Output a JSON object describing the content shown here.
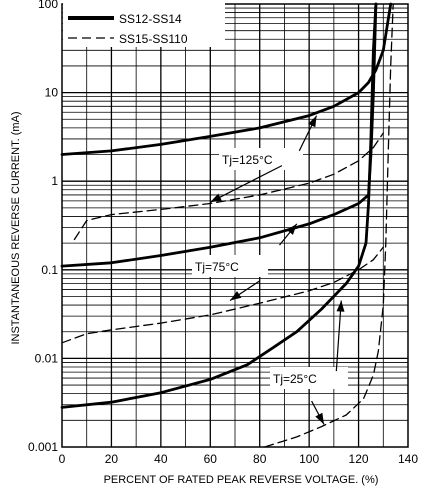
{
  "chart_data": {
    "type": "line",
    "title": "",
    "xlabel": "PERCENT OF RATED PEAK REVERSE VOLTAGE. (%)",
    "ylabel": "INSTANTANEOUS REVERSE CURRENT. (mA)",
    "xlim": [
      0,
      140
    ],
    "ylim": [
      0.001,
      100
    ],
    "yscale": "log",
    "grid": true,
    "xticks": [
      "0",
      "20",
      "40",
      "60",
      "80",
      "100",
      "120",
      "140"
    ],
    "yticks": [
      "0.001",
      "0.01",
      "0.1",
      "1",
      "10",
      "100"
    ],
    "legend": {
      "placement": "top-left",
      "entries": [
        {
          "label": "SS12-SS14",
          "style": "solid"
        },
        {
          "label": "SS15-SS110",
          "style": "dashed"
        }
      ]
    },
    "series": [
      {
        "legend": "SS12-SS14",
        "style": "solid",
        "condition": "Tj=125°C",
        "points": [
          [
            0,
            2.0
          ],
          [
            20,
            2.2
          ],
          [
            40,
            2.6
          ],
          [
            60,
            3.2
          ],
          [
            80,
            4.0
          ],
          [
            100,
            5.5
          ],
          [
            110,
            7.0
          ],
          [
            120,
            10.0
          ],
          [
            124,
            13.0
          ],
          [
            127,
            18.0
          ],
          [
            130,
            30.0
          ],
          [
            133,
            100.0
          ]
        ]
      },
      {
        "legend": "SS12-SS14",
        "style": "solid",
        "condition": "Tj=75°C",
        "points": [
          [
            0,
            0.11
          ],
          [
            20,
            0.12
          ],
          [
            40,
            0.145
          ],
          [
            60,
            0.18
          ],
          [
            80,
            0.23
          ],
          [
            100,
            0.33
          ],
          [
            110,
            0.42
          ],
          [
            120,
            0.56
          ],
          [
            124,
            0.7
          ],
          [
            125,
            2.0
          ],
          [
            126,
            10.0
          ],
          [
            127,
            100.0
          ]
        ]
      },
      {
        "legend": "SS12-SS14",
        "style": "solid",
        "condition": "Tj=25°C",
        "points": [
          [
            0,
            0.0028
          ],
          [
            20,
            0.0032
          ],
          [
            40,
            0.0041
          ],
          [
            60,
            0.0058
          ],
          [
            75,
            0.0085
          ],
          [
            85,
            0.013
          ],
          [
            95,
            0.02
          ],
          [
            105,
            0.036
          ],
          [
            115,
            0.07
          ],
          [
            120,
            0.11
          ],
          [
            123,
            0.2
          ],
          [
            124,
            0.55
          ],
          [
            125,
            3.0
          ],
          [
            126,
            30.0
          ],
          [
            127,
            100.0
          ]
        ]
      },
      {
        "legend": "SS15-SS110",
        "style": "dashed",
        "condition": "Tj=125°C",
        "points": [
          [
            5,
            0.22
          ],
          [
            10,
            0.36
          ],
          [
            20,
            0.42
          ],
          [
            40,
            0.48
          ],
          [
            60,
            0.56
          ],
          [
            80,
            0.7
          ],
          [
            100,
            0.95
          ],
          [
            110,
            1.2
          ],
          [
            120,
            1.7
          ],
          [
            126,
            2.4
          ],
          [
            130,
            3.5
          ]
        ]
      },
      {
        "legend": "SS15-SS110",
        "style": "dashed",
        "condition": "Tj=75°C",
        "points": [
          [
            0,
            0.015
          ],
          [
            10,
            0.019
          ],
          [
            20,
            0.021
          ],
          [
            40,
            0.025
          ],
          [
            60,
            0.031
          ],
          [
            80,
            0.042
          ],
          [
            100,
            0.058
          ],
          [
            110,
            0.072
          ],
          [
            120,
            0.1
          ],
          [
            126,
            0.13
          ],
          [
            130,
            0.18
          ]
        ]
      },
      {
        "legend": "SS15-SS110",
        "style": "dashed",
        "condition": "Tj=25°C",
        "points": [
          [
            82,
            0.001
          ],
          [
            95,
            0.0013
          ],
          [
            105,
            0.0017
          ],
          [
            115,
            0.0023
          ],
          [
            122,
            0.0035
          ],
          [
            126,
            0.0065
          ],
          [
            128,
            0.012
          ],
          [
            130,
            0.04
          ],
          [
            131,
            0.2
          ],
          [
            132,
            2.0
          ],
          [
            133,
            20.0
          ],
          [
            134,
            100.0
          ]
        ]
      }
    ],
    "annotations": [
      {
        "label": "Tj=125°C",
        "arrows": [
          {
            "from": [
              96,
              2.2
            ],
            "to": [
              103,
              5.5
            ]
          },
          {
            "from": [
              89,
              1.5
            ],
            "to": [
              60,
              0.58
            ]
          }
        ]
      },
      {
        "label": "Tj=75°C",
        "arrows": [
          {
            "from": [
              88,
              0.19
            ],
            "to": [
              95,
              0.33
            ]
          },
          {
            "from": [
              80,
              0.075
            ],
            "to": [
              68,
              0.045
            ]
          }
        ]
      },
      {
        "label": "Tj=25°C",
        "arrows": [
          {
            "from": [
              111,
              0.0072
            ],
            "to": [
              113,
              0.045
            ]
          },
          {
            "from": [
              101,
              0.0033
            ],
            "to": [
              106,
              0.0018
            ]
          }
        ]
      }
    ]
  }
}
